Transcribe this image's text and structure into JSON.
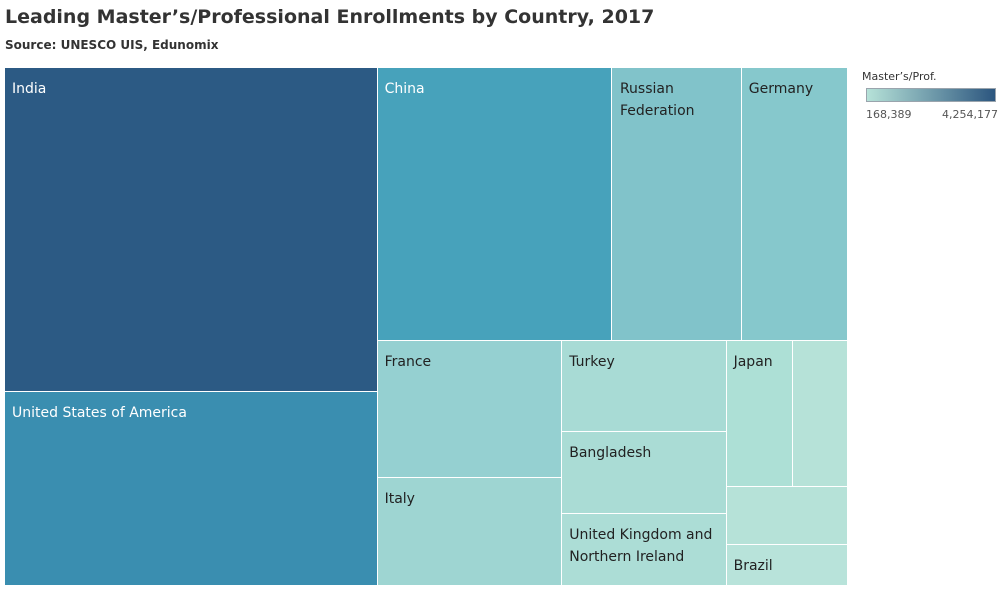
{
  "chart_data": {
    "type": "treemap",
    "title": "Leading Master’s/Professional Enrollments by Country, 2017",
    "subtitle": "Source: UNESCO UIS, Edunomix",
    "legend": {
      "title": "Master’s/Prof.",
      "min_label": "168,389",
      "max_label": "4,254,177",
      "min": 168389,
      "max": 4254177,
      "color_low": "#b6e2d8",
      "color_high": "#2c567f",
      "placement": "top-right"
    },
    "items": [
      {
        "label": "India",
        "value": 4254177,
        "color": "#2c5a84"
      },
      {
        "label": "United States of America",
        "value": 2400000,
        "color": "#3a8eb0"
      },
      {
        "label": "China",
        "value": 1700000,
        "color": "#47a2bb"
      },
      {
        "label": "Russian Federation",
        "value": 750000,
        "color": "#81c3ca"
      },
      {
        "label": "Germany",
        "value": 620000,
        "color": "#86c8cc"
      },
      {
        "label": "France",
        "value": 550000,
        "color": "#95d0d1"
      },
      {
        "label": "Italy",
        "value": 480000,
        "color": "#9ed5d2"
      },
      {
        "label": "Turkey",
        "value": 370000,
        "color": "#a8dbd5"
      },
      {
        "label": "Bangladesh",
        "value": 330000,
        "color": "#aadcd5"
      },
      {
        "label": "United Kingdom and Northern Ireland",
        "value": 315000,
        "color": "#acddd6"
      },
      {
        "label": "Japan",
        "value": 250000,
        "color": "#ade0d6"
      },
      {
        "label": "",
        "value": 210000,
        "color": "#b6e2d8"
      },
      {
        "label": "",
        "value": 190000,
        "color": "#b6e2d8"
      },
      {
        "label": "Brazil",
        "value": 168389,
        "color": "#b8e3da"
      }
    ]
  }
}
